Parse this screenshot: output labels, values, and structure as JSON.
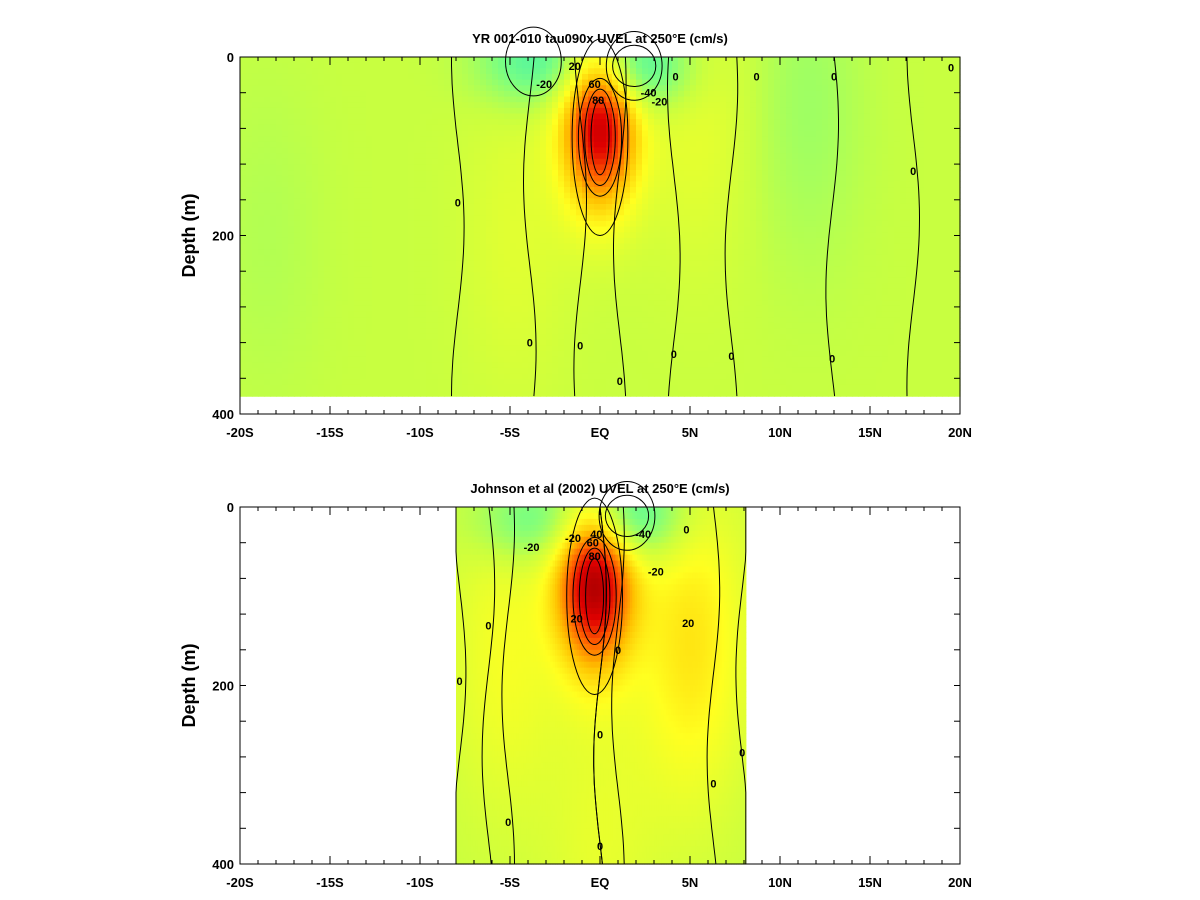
{
  "chart_data": [
    {
      "type": "heatmap",
      "title": "YR 001-010 tau090x UVEL at 250°E (cm/s)",
      "ylabel": "Depth (m)",
      "xlabel": "",
      "x_ticks": [
        "-20S",
        "-15S",
        "-10S",
        "-5S",
        "EQ",
        "5N",
        "10N",
        "15N",
        "20N"
      ],
      "x_tick_values": [
        -20,
        -15,
        -10,
        -5,
        0,
        5,
        10,
        15,
        20
      ],
      "y_ticks": [
        "0",
        "200",
        "400"
      ],
      "y_tick_values": [
        0,
        200,
        400
      ],
      "xlim": [
        -20,
        20
      ],
      "ylim": [
        400,
        0
      ],
      "data_extent_x": [
        -20,
        20
      ],
      "data_depth_max": 380,
      "colormap": [
        "#0000a0",
        "#1030ff",
        "#00c8ff",
        "#40f0b0",
        "#7cff80",
        "#c8ff40",
        "#ffff20",
        "#ffc000",
        "#ff6000",
        "#e00000",
        "#a00000"
      ],
      "features": [
        {
          "x": 0.0,
          "depth": 70,
          "value": 80
        },
        {
          "x": 1.9,
          "depth": 10,
          "value": -40
        },
        {
          "x": -3.7,
          "depth": 5,
          "value": -30
        },
        {
          "x": -4.7,
          "depth": 200,
          "value": 8
        },
        {
          "x": 5.5,
          "depth": 60,
          "value": 10
        },
        {
          "x": 11.5,
          "depth": 50,
          "value": -10
        },
        {
          "x": -18.5,
          "depth": 200,
          "value": -5
        }
      ],
      "contour_labels": [
        {
          "text": "60",
          "x": -0.3,
          "depth": 30
        },
        {
          "text": "80",
          "x": -0.1,
          "depth": 48
        },
        {
          "text": "20",
          "x": -1.4,
          "depth": 10
        },
        {
          "text": "-20",
          "x": -3.1,
          "depth": 30
        },
        {
          "text": "-40",
          "x": 2.7,
          "depth": 40
        },
        {
          "text": "-20",
          "x": 3.3,
          "depth": 50
        },
        {
          "text": "0",
          "x": -7.9,
          "depth": 163
        },
        {
          "text": "0",
          "x": -3.9,
          "depth": 320
        },
        {
          "text": "0",
          "x": -1.1,
          "depth": 323
        },
        {
          "text": "0",
          "x": 1.1,
          "depth": 363
        },
        {
          "text": "0",
          "x": 4.1,
          "depth": 333
        },
        {
          "text": "0",
          "x": 7.3,
          "depth": 335
        },
        {
          "text": "0",
          "x": 12.9,
          "depth": 338
        },
        {
          "text": "0",
          "x": 17.4,
          "depth": 128
        },
        {
          "text": "0",
          "x": 4.2,
          "depth": 22
        },
        {
          "text": "0",
          "x": 8.7,
          "depth": 22
        },
        {
          "text": "0",
          "x": 13.0,
          "depth": 22
        },
        {
          "text": "0",
          "x": 19.5,
          "depth": 12
        }
      ]
    },
    {
      "type": "heatmap",
      "title": "Johnson et al (2002) UVEL at 250°E (cm/s)",
      "ylabel": "Depth (m)",
      "xlabel": "",
      "x_ticks": [
        "-20S",
        "-15S",
        "-10S",
        "-5S",
        "EQ",
        "5N",
        "10N",
        "15N",
        "20N"
      ],
      "x_tick_values": [
        -20,
        -15,
        -10,
        -5,
        0,
        5,
        10,
        15,
        20
      ],
      "y_ticks": [
        "0",
        "200",
        "400"
      ],
      "y_tick_values": [
        0,
        200,
        400
      ],
      "xlim": [
        -20,
        20
      ],
      "ylim": [
        400,
        0
      ],
      "data_extent_x": [
        -8,
        8.1
      ],
      "data_depth_max": 400,
      "colormap": [
        "#0000a0",
        "#1030ff",
        "#00c8ff",
        "#40f0b0",
        "#7cff80",
        "#c8ff40",
        "#ffff20",
        "#ffc000",
        "#ff6000",
        "#e00000",
        "#a00000"
      ],
      "features": [
        {
          "x": -0.3,
          "depth": 80,
          "value": 85
        },
        {
          "x": 1.5,
          "depth": 10,
          "value": -40
        },
        {
          "x": -4.0,
          "depth": 15,
          "value": -25
        },
        {
          "x": -5.3,
          "depth": 160,
          "value": 15
        },
        {
          "x": 5.1,
          "depth": 150,
          "value": 25
        },
        {
          "x": 0.0,
          "depth": 380,
          "value": 10
        }
      ],
      "contour_labels": [
        {
          "text": "-20",
          "x": -3.8,
          "depth": 45
        },
        {
          "text": "-20",
          "x": -1.5,
          "depth": 35
        },
        {
          "text": "40",
          "x": -0.2,
          "depth": 30
        },
        {
          "text": "60",
          "x": -0.4,
          "depth": 40
        },
        {
          "text": "80",
          "x": -0.3,
          "depth": 55
        },
        {
          "text": "-40",
          "x": 2.4,
          "depth": 30
        },
        {
          "text": "-20",
          "x": 3.1,
          "depth": 72
        },
        {
          "text": "20",
          "x": 4.9,
          "depth": 130
        },
        {
          "text": "20",
          "x": -1.3,
          "depth": 125
        },
        {
          "text": "0",
          "x": -6.2,
          "depth": 133
        },
        {
          "text": "0",
          "x": -7.8,
          "depth": 195
        },
        {
          "text": "0",
          "x": -5.1,
          "depth": 353
        },
        {
          "text": "0",
          "x": 1.0,
          "depth": 160
        },
        {
          "text": "0",
          "x": 6.3,
          "depth": 310
        },
        {
          "text": "0",
          "x": 7.9,
          "depth": 275
        },
        {
          "text": "0",
          "x": 4.8,
          "depth": 25
        },
        {
          "text": "0",
          "x": 0.0,
          "depth": 255
        },
        {
          "text": "0",
          "x": 0.0,
          "depth": 380
        }
      ]
    }
  ]
}
